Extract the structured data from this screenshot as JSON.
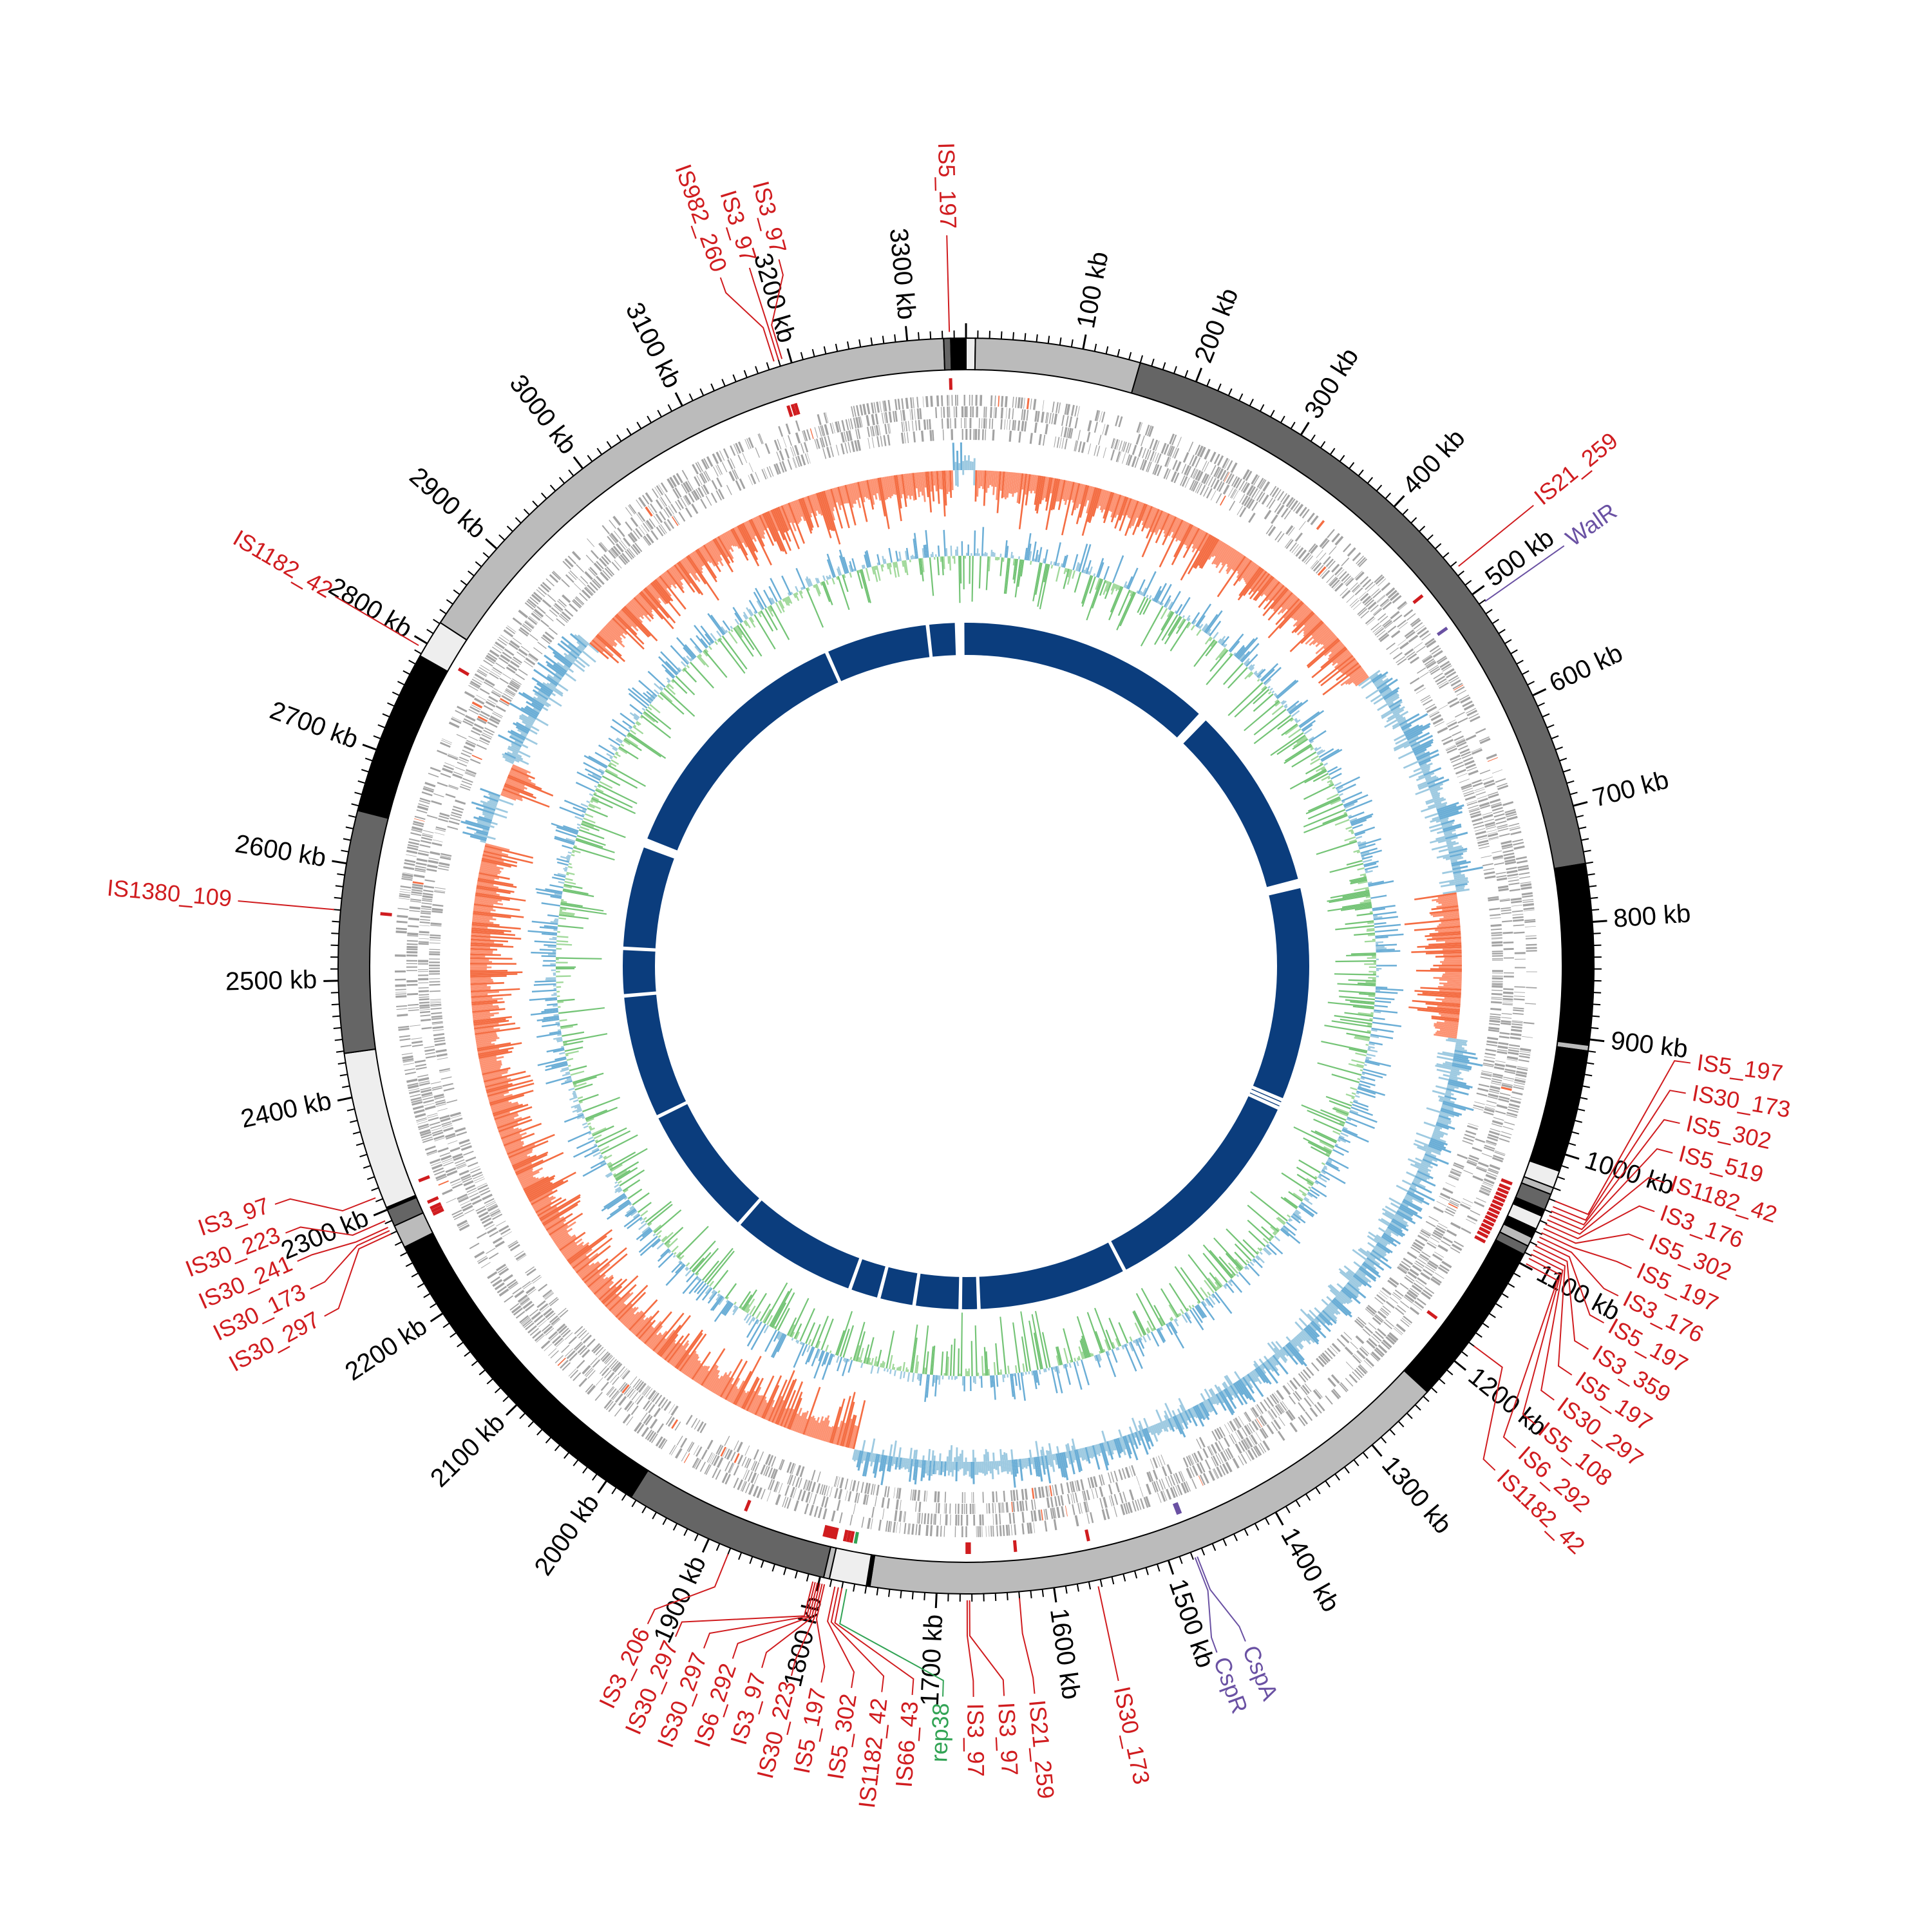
{
  "chart_data": {
    "type": "circos",
    "title": "",
    "genome_length_kb": 3350,
    "tick_interval_kb": 100,
    "minor_tick_interval_kb": 10,
    "tick_labels": [
      {
        "kb": 100,
        "label": "100 kb"
      },
      {
        "kb": 200,
        "label": "200 kb"
      },
      {
        "kb": 300,
        "label": "300 kb"
      },
      {
        "kb": 400,
        "label": "400 kb"
      },
      {
        "kb": 500,
        "label": "500 kb"
      },
      {
        "kb": 600,
        "label": "600 kb"
      },
      {
        "kb": 700,
        "label": "700 kb"
      },
      {
        "kb": 800,
        "label": "800 kb"
      },
      {
        "kb": 900,
        "label": "900 kb"
      },
      {
        "kb": 1000,
        "label": "1000 kb"
      },
      {
        "kb": 1100,
        "label": "1100 kb"
      },
      {
        "kb": 1200,
        "label": "1200 kb"
      },
      {
        "kb": 1300,
        "label": "1300 kb"
      },
      {
        "kb": 1400,
        "label": "1400 kb"
      },
      {
        "kb": 1500,
        "label": "1500 kb"
      },
      {
        "kb": 1600,
        "label": "1600 kb"
      },
      {
        "kb": 1700,
        "label": "1700 kb"
      },
      {
        "kb": 1800,
        "label": "1800 kb"
      },
      {
        "kb": 1900,
        "label": "1900 kb"
      },
      {
        "kb": 2000,
        "label": "2000 kb"
      },
      {
        "kb": 2100,
        "label": "2100 kb"
      },
      {
        "kb": 2200,
        "label": "2200 kb"
      },
      {
        "kb": 2300,
        "label": "2300 kb"
      },
      {
        "kb": 2400,
        "label": "2400 kb"
      },
      {
        "kb": 2500,
        "label": "2500 kb"
      },
      {
        "kb": 2600,
        "label": "2600 kb"
      },
      {
        "kb": 2700,
        "label": "2700 kb"
      },
      {
        "kb": 2800,
        "label": "2800 kb"
      },
      {
        "kb": 2900,
        "label": "2900 kb"
      },
      {
        "kb": 3000,
        "label": "3000 kb"
      },
      {
        "kb": 3100,
        "label": "3100 kb"
      },
      {
        "kb": 3200,
        "label": "3200 kb"
      },
      {
        "kb": 3300,
        "label": "3300 kb"
      }
    ],
    "ideogram_bands": [
      {
        "start": 0,
        "end": 8,
        "color": "#eeeeee"
      },
      {
        "start": 8,
        "end": 150,
        "color": "#bbbbbb"
      },
      {
        "start": 150,
        "end": 750,
        "color": "#656565"
      },
      {
        "start": 750,
        "end": 905,
        "color": "#000000"
      },
      {
        "start": 905,
        "end": 910,
        "color": "#bbbbbb"
      },
      {
        "start": 910,
        "end": 1015,
        "color": "#000000"
      },
      {
        "start": 1015,
        "end": 1030,
        "color": "#eeeeee"
      },
      {
        "start": 1030,
        "end": 1036,
        "color": "#bbbbbb"
      },
      {
        "start": 1036,
        "end": 1050,
        "color": "#656565"
      },
      {
        "start": 1050,
        "end": 1056,
        "color": "#000000"
      },
      {
        "start": 1056,
        "end": 1068,
        "color": "#eeeeee"
      },
      {
        "start": 1068,
        "end": 1076,
        "color": "#000000"
      },
      {
        "start": 1076,
        "end": 1084,
        "color": "#bbbbbb"
      },
      {
        "start": 1084,
        "end": 1092,
        "color": "#656565"
      },
      {
        "start": 1092,
        "end": 1235,
        "color": "#000000"
      },
      {
        "start": 1235,
        "end": 1757,
        "color": "#bbbbbb"
      },
      {
        "start": 1757,
        "end": 1760,
        "color": "#000000"
      },
      {
        "start": 1760,
        "end": 1792,
        "color": "#eeeeee"
      },
      {
        "start": 1792,
        "end": 1797,
        "color": "#bbbbbb"
      },
      {
        "start": 1797,
        "end": 1975,
        "color": "#656565"
      },
      {
        "start": 1975,
        "end": 2265,
        "color": "#000000"
      },
      {
        "start": 2265,
        "end": 2285,
        "color": "#bbbbbb"
      },
      {
        "start": 2285,
        "end": 2300,
        "color": "#656565"
      },
      {
        "start": 2300,
        "end": 2302,
        "color": "#000000"
      },
      {
        "start": 2302,
        "end": 2438,
        "color": "#eeeeee"
      },
      {
        "start": 2438,
        "end": 2646,
        "color": "#656565"
      },
      {
        "start": 2646,
        "end": 2788,
        "color": "#000000"
      },
      {
        "start": 2788,
        "end": 2821,
        "color": "#eeeeee"
      },
      {
        "start": 2821,
        "end": 3331,
        "color": "#bbbbbb"
      },
      {
        "start": 3331,
        "end": 3337,
        "color": "#656565"
      },
      {
        "start": 3337,
        "end": 3350,
        "color": "#000000"
      }
    ],
    "features": [
      {
        "label": "IS5_197",
        "kb": 3336,
        "color": "#d01c1f"
      },
      {
        "label": "IS982_260",
        "kb": 3186,
        "color": "#d01c1f"
      },
      {
        "label": "IS3_97",
        "kb": 3190,
        "color": "#d01c1f"
      },
      {
        "label": "IS3_97",
        "kb": 3193,
        "color": "#d01c1f"
      },
      {
        "label": "IS21_259",
        "kb": 474,
        "color": "#d01c1f"
      },
      {
        "label": "WalR",
        "kb": 511,
        "color": "#6a51a3"
      },
      {
        "label": "IS5_197",
        "kb": 1040,
        "color": "#d01c1f"
      },
      {
        "label": "IS30_173",
        "kb": 1045,
        "color": "#d01c1f"
      },
      {
        "label": "IS5_302",
        "kb": 1049,
        "color": "#d01c1f"
      },
      {
        "label": "IS5_519",
        "kb": 1053,
        "color": "#d01c1f"
      },
      {
        "label": "IS1182_42",
        "kb": 1057,
        "color": "#d01c1f"
      },
      {
        "label": "IS3_176",
        "kb": 1061,
        "color": "#d01c1f"
      },
      {
        "label": "IS5_302",
        "kb": 1065,
        "color": "#d01c1f"
      },
      {
        "label": "IS5_197",
        "kb": 1069,
        "color": "#d01c1f"
      },
      {
        "label": "IS3_176",
        "kb": 1073,
        "color": "#d01c1f"
      },
      {
        "label": "IS5_197",
        "kb": 1077,
        "color": "#d01c1f"
      },
      {
        "label": "IS3_359",
        "kb": 1081,
        "color": "#d01c1f"
      },
      {
        "label": "IS5_197",
        "kb": 1085,
        "color": "#d01c1f"
      },
      {
        "label": "IS30_297",
        "kb": 1089,
        "color": "#d01c1f"
      },
      {
        "label": "IS5_108",
        "kb": 1093,
        "color": "#d01c1f"
      },
      {
        "label": "IS6_292",
        "kb": 1098,
        "color": "#d01c1f"
      },
      {
        "label": "IS1182_42",
        "kb": 1180,
        "color": "#d01c1f"
      },
      {
        "label": "CspA",
        "kb": 1476,
        "color": "#6a51a3"
      },
      {
        "label": "CspR",
        "kb": 1478,
        "color": "#6a51a3"
      },
      {
        "label": "IS30_173",
        "kb": 1563,
        "color": "#d01c1f"
      },
      {
        "label": "IS21_259",
        "kb": 1630,
        "color": "#d01c1f"
      },
      {
        "label": "IS3_97",
        "kb": 1672,
        "color": "#d01c1f"
      },
      {
        "label": "IS3_97",
        "kb": 1674,
        "color": "#d01c1f"
      },
      {
        "label": "rep38",
        "kb": 1776,
        "color": "#31a354"
      },
      {
        "label": "IS66_43",
        "kb": 1780,
        "color": "#d01c1f"
      },
      {
        "label": "IS1182_42",
        "kb": 1783,
        "color": "#d01c1f"
      },
      {
        "label": "IS5_302",
        "kb": 1786,
        "color": "#d01c1f"
      },
      {
        "label": "IS5_197",
        "kb": 1795,
        "color": "#d01c1f"
      },
      {
        "label": "IS30_223",
        "kb": 1797,
        "color": "#d01c1f"
      },
      {
        "label": "IS3_97",
        "kb": 1799,
        "color": "#d01c1f"
      },
      {
        "label": "IS6_292",
        "kb": 1801,
        "color": "#d01c1f"
      },
      {
        "label": "IS30_297",
        "kb": 1803,
        "color": "#d01c1f"
      },
      {
        "label": "IS30_297",
        "kb": 1805,
        "color": "#d01c1f"
      },
      {
        "label": "IS3_206",
        "kb": 1880,
        "color": "#d01c1f"
      },
      {
        "label": "IS30_297",
        "kb": 2280,
        "color": "#d01c1f"
      },
      {
        "label": "IS30_173",
        "kb": 2283,
        "color": "#d01c1f"
      },
      {
        "label": "IS30_241",
        "kb": 2286,
        "color": "#d01c1f"
      },
      {
        "label": "IS30_223",
        "kb": 2292,
        "color": "#d01c1f"
      },
      {
        "label": "IS3_97",
        "kb": 2313,
        "color": "#d01c1f"
      },
      {
        "label": "IS1380_109",
        "kb": 2560,
        "color": "#d01c1f"
      },
      {
        "label": "IS1182_42",
        "kb": 2795,
        "color": "#d01c1f"
      }
    ],
    "gc_skew_segments": [
      {
        "start": 0,
        "end": 10,
        "color": "#6baed6"
      },
      {
        "start": 10,
        "end": 505,
        "color": "#fc8d62"
      },
      {
        "start": 505,
        "end": 757,
        "color": "#6baed6"
      },
      {
        "start": 757,
        "end": 915,
        "color": "#fc8d62"
      },
      {
        "start": 915,
        "end": 1795,
        "color": "#6baed6"
      },
      {
        "start": 1795,
        "end": 2645,
        "color": "#fc8d62"
      },
      {
        "start": 2645,
        "end": 2700,
        "color": "#6baed6"
      },
      {
        "start": 2700,
        "end": 2735,
        "color": "#fc8d62"
      },
      {
        "start": 2735,
        "end": 2890,
        "color": "#6baed6"
      },
      {
        "start": 2890,
        "end": 3335,
        "color": "#fc8d62"
      },
      {
        "start": 3335,
        "end": 3350,
        "color": "#6baed6"
      }
    ],
    "gc_content_colors": {
      "above": "#6baed6",
      "below": "#74c476"
    },
    "gene_track_color": "#a3a3a3",
    "inner_ring_color": "#0b3d7d",
    "inner_ring_gaps_kb": [
      3290,
      3340,
      405,
      708,
      1051,
      1058,
      1065,
      1419,
      1655,
      1684,
      1756,
      1812,
      1859,
      2060,
      2270,
      2466,
      2540,
      2708,
      3127
    ]
  }
}
